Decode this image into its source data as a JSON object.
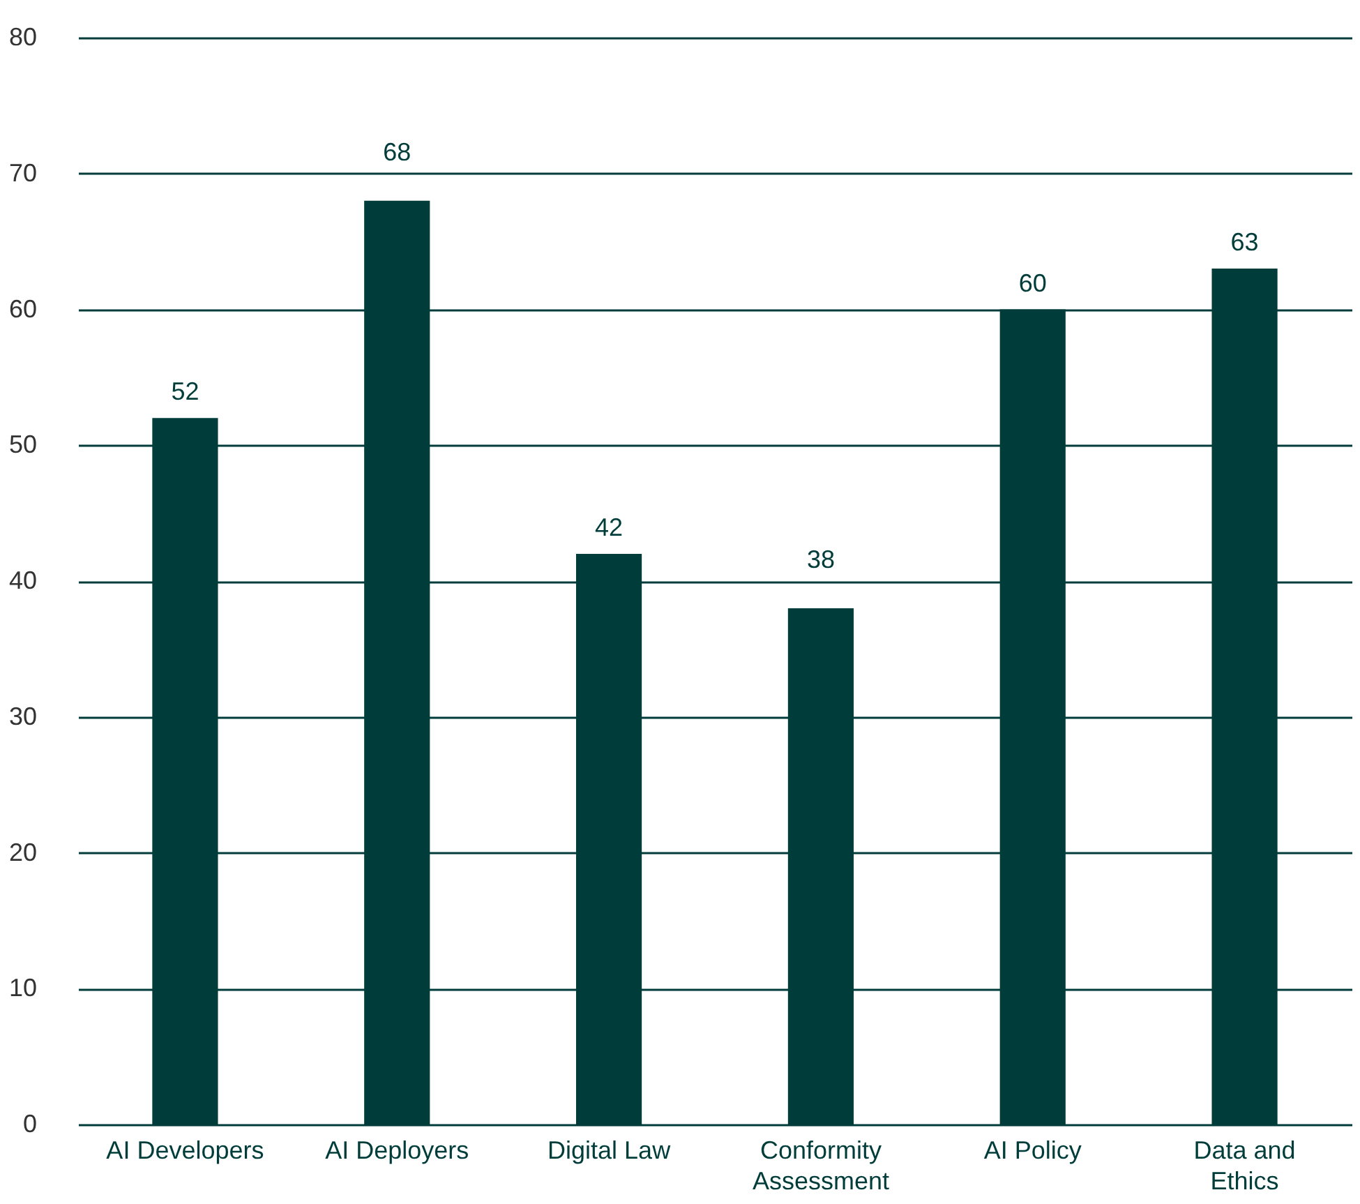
{
  "chart_data": {
    "type": "bar",
    "categories": [
      "AI Developers",
      "AI Deployers",
      "Digital Law",
      "Conformity\nAssessment",
      "AI Policy",
      "Data and\nEthics"
    ],
    "values": [
      52,
      68,
      42,
      38,
      60,
      63
    ],
    "color": "#003d3a",
    "ylim": [
      0,
      80
    ],
    "yticks": [
      0,
      10,
      20,
      30,
      40,
      50,
      60,
      70,
      80
    ],
    "grid": "y",
    "data_labels": true
  }
}
